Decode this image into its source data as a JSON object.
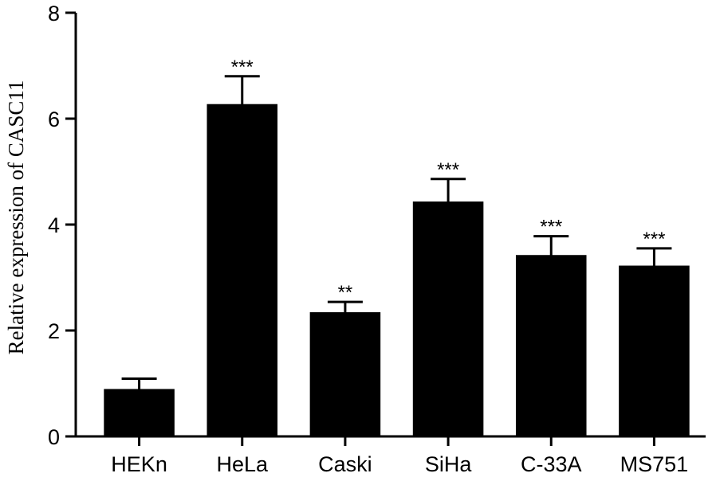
{
  "chart_data": {
    "type": "bar",
    "title": "",
    "xlabel": "",
    "ylabel": "Relative expression of CASC11",
    "categories": [
      "HEKn",
      "HeLa",
      "Caski",
      "SiHa",
      "C-33A",
      "MS751"
    ],
    "values": [
      0.88,
      6.26,
      2.33,
      4.42,
      3.41,
      3.21
    ],
    "errors": [
      0.21,
      0.54,
      0.21,
      0.44,
      0.37,
      0.34
    ],
    "significance": [
      "",
      "***",
      "**",
      "***",
      "***",
      "***"
    ],
    "ylim": [
      0,
      8
    ],
    "yticks": [
      "0",
      "2",
      "4",
      "6",
      "8"
    ],
    "grid": false,
    "bar_color": "#000000"
  }
}
